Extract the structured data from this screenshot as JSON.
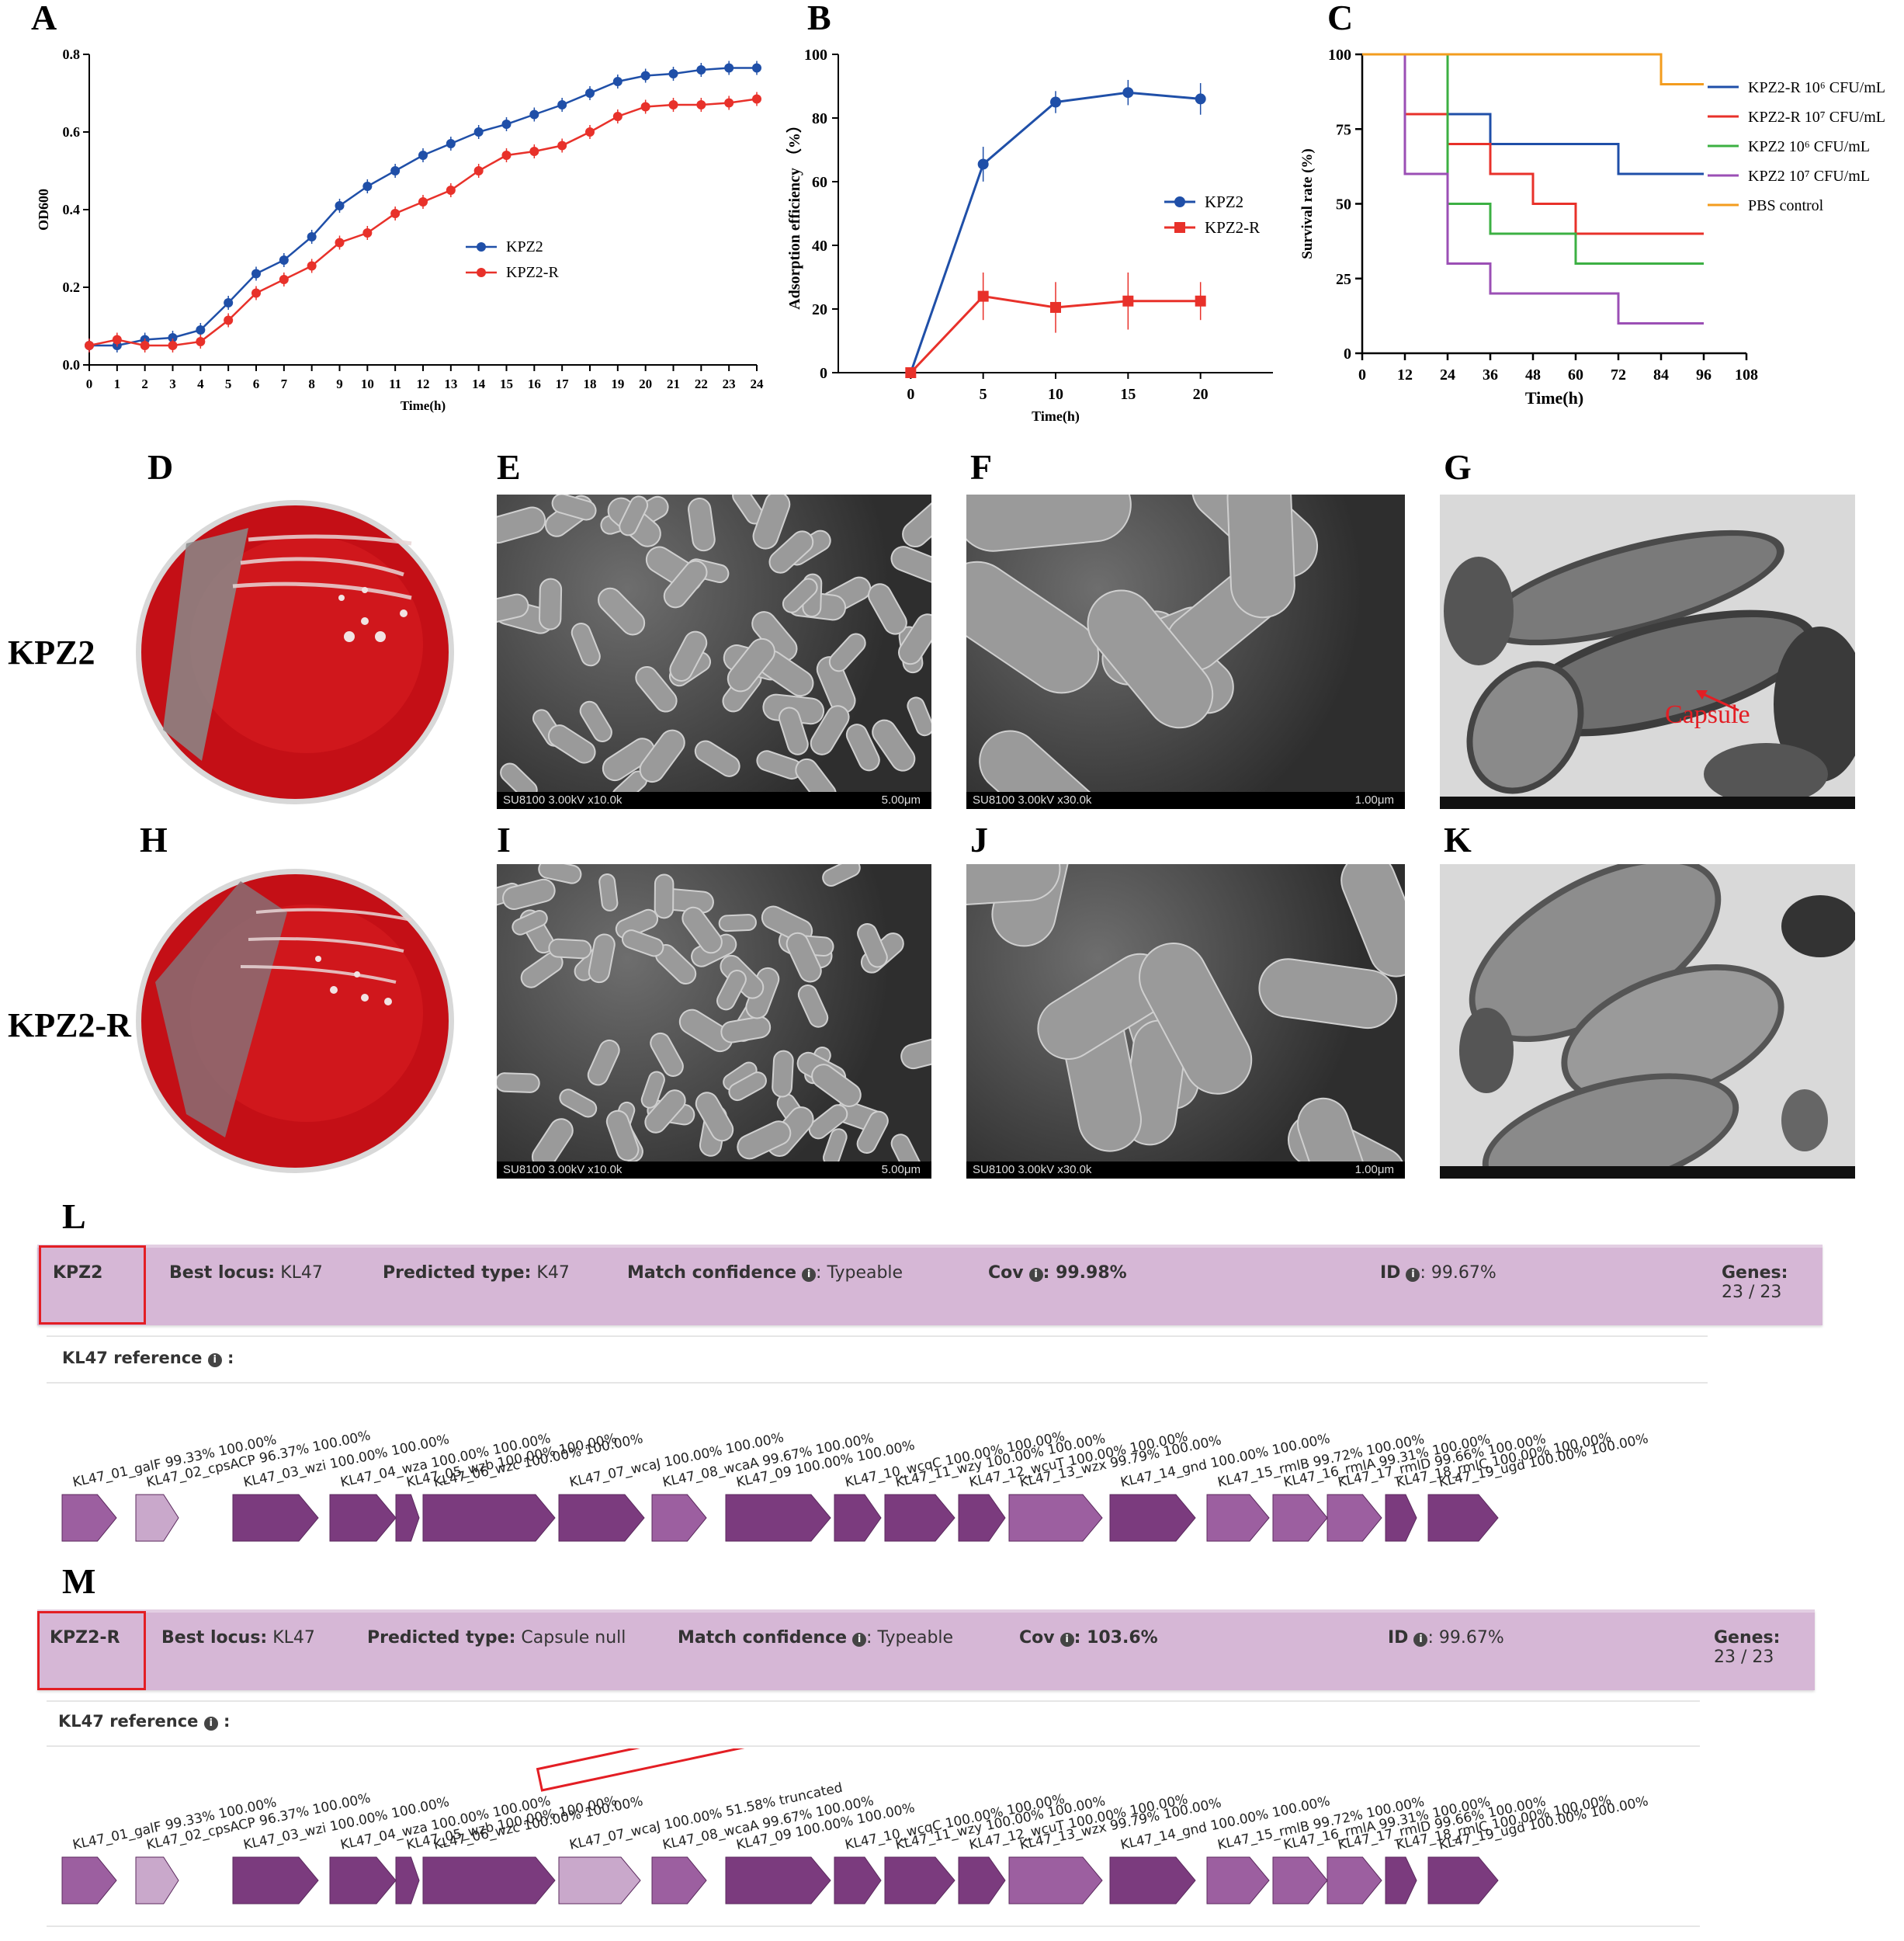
{
  "panels": {
    "A": "A",
    "B": "B",
    "C": "C",
    "D": "D",
    "E": "E",
    "F": "F",
    "G": "G",
    "H": "H",
    "I": "I",
    "J": "J",
    "K": "K",
    "L": "L",
    "M": "M"
  },
  "row_labels": {
    "top": "KPZ2",
    "bottom": "KPZ2-R"
  },
  "chart_data": [
    {
      "panel": "A",
      "type": "line",
      "xlabel": "Time(h)",
      "ylabel": "OD600",
      "xlim": [
        0,
        24
      ],
      "ylim": [
        0,
        0.8
      ],
      "x": [
        0,
        1,
        2,
        3,
        4,
        5,
        6,
        7,
        8,
        9,
        10,
        11,
        12,
        13,
        14,
        15,
        16,
        17,
        18,
        19,
        20,
        21,
        22,
        23,
        24
      ],
      "yticks": [
        "0.0",
        "0.2",
        "0.4",
        "0.6",
        "0.8"
      ],
      "series": [
        {
          "name": "KPZ2",
          "color": "#1f4fa8",
          "values": [
            0.05,
            0.05,
            0.065,
            0.07,
            0.09,
            0.16,
            0.235,
            0.27,
            0.33,
            0.41,
            0.46,
            0.5,
            0.54,
            0.57,
            0.6,
            0.62,
            0.645,
            0.67,
            0.7,
            0.73,
            0.745,
            0.75,
            0.76,
            0.765,
            0.765
          ]
        },
        {
          "name": "KPZ2-R",
          "color": "#e8312a",
          "values": [
            0.05,
            0.065,
            0.05,
            0.05,
            0.06,
            0.115,
            0.185,
            0.22,
            0.255,
            0.315,
            0.34,
            0.39,
            0.42,
            0.45,
            0.5,
            0.54,
            0.55,
            0.565,
            0.6,
            0.64,
            0.665,
            0.67,
            0.67,
            0.675,
            0.685
          ]
        }
      ]
    },
    {
      "panel": "B",
      "type": "line",
      "xlabel": "Time(h)",
      "ylabel": "Adsorption efficiency （%）",
      "xlim": [
        -5,
        25
      ],
      "ylim": [
        0,
        100
      ],
      "x": [
        0,
        5,
        10,
        15,
        20
      ],
      "yticks": [
        "0",
        "20",
        "40",
        "60",
        "80",
        "100"
      ],
      "series": [
        {
          "name": "KPZ2",
          "color": "#1f4fa8",
          "values": [
            0,
            65.5,
            85,
            88,
            86
          ]
        },
        {
          "name": "KPZ2-R",
          "color": "#e8312a",
          "values": [
            0,
            24,
            20.5,
            22.5,
            22.5
          ]
        }
      ]
    },
    {
      "panel": "C",
      "type": "line",
      "step": true,
      "xlabel": "Time(h)",
      "ylabel": "Survival rate (%)",
      "xlim": [
        0,
        108
      ],
      "ylim": [
        0,
        100
      ],
      "xticks": [
        "0",
        "12",
        "24",
        "36",
        "48",
        "60",
        "72",
        "84",
        "96",
        "108"
      ],
      "yticks": [
        "0",
        "25",
        "50",
        "75",
        "100"
      ],
      "series": [
        {
          "name": "KPZ2-R 10⁶ CFU/mL",
          "color": "#1f4fa8",
          "steps": [
            [
              0,
              100
            ],
            [
              24,
              80
            ],
            [
              36,
              70
            ],
            [
              72,
              60
            ],
            [
              96,
              60
            ]
          ]
        },
        {
          "name": "KPZ2-R 10⁷ CFU/mL",
          "color": "#e8312a",
          "steps": [
            [
              0,
              100
            ],
            [
              12,
              80
            ],
            [
              24,
              70
            ],
            [
              36,
              60
            ],
            [
              48,
              50
            ],
            [
              60,
              40
            ],
            [
              96,
              40
            ]
          ]
        },
        {
          "name": "KPZ2 10⁶ CFU/mL",
          "color": "#3cb043",
          "steps": [
            [
              0,
              100
            ],
            [
              24,
              50
            ],
            [
              36,
              40
            ],
            [
              60,
              30
            ],
            [
              96,
              30
            ]
          ]
        },
        {
          "name": "KPZ2 10⁷ CFU/mL",
          "color": "#9b4fb5",
          "steps": [
            [
              0,
              100
            ],
            [
              12,
              60
            ],
            [
              24,
              30
            ],
            [
              36,
              20
            ],
            [
              72,
              10
            ],
            [
              96,
              10
            ]
          ]
        },
        {
          "name": "PBS control",
          "color": "#f39c1e",
          "steps": [
            [
              0,
              100
            ],
            [
              84,
              90
            ],
            [
              96,
              90
            ]
          ]
        }
      ]
    }
  ],
  "images": {
    "E_caption": "SU8100 3.00kV x10.0k",
    "E_scale": "5.00μm",
    "F_caption": "SU8100 3.00kV x30.0k",
    "F_scale": "1.00μm",
    "I_caption": "SU8100 3.00kV x10.0k",
    "I_scale": "5.00μm",
    "J_caption": "SU8100 3.00kV x30.0k",
    "J_scale": "1.00μm",
    "G_annotation": "Capsule"
  },
  "kaptive": [
    {
      "strain": "KPZ2",
      "best_locus_label": "Best locus:",
      "best_locus": "KL47",
      "predicted_type_label": "Predicted type:",
      "predicted_type": "K47",
      "match_confidence_label": "Match confidence",
      "match_confidence": ": Typeable",
      "cov_label": "Cov",
      "cov": ": 99.98%",
      "id_label": "ID",
      "id": ": 99.67%",
      "genes_label": "Genes:",
      "genes": "23 / 23",
      "reference_label": "KL47 reference",
      "genes_list": [
        "KL47_01_galF 99.33% 100.00%",
        "KL47_02_cpsACP 96.37% 100.00%",
        "KL47_03_wzi 100.00% 100.00%",
        "KL47_04_wza 100.00% 100.00%",
        "KL47_05_wzb 100.00% 100.00%",
        "KL47_06_wzc 100.00% 100.00%",
        "KL47_07_wcaJ 100.00% 100.00%",
        "KL47_08_wcaA 99.67% 100.00%",
        "KL47_09 100.00% 100.00%",
        "KL47_10_wcqC 100.00% 100.00%",
        "KL47_11_wzy 100.00% 100.00%",
        "KL47_12_wcuT 100.00% 100.00%",
        "KL47_13_wzx 99.79% 100.00%",
        "KL47_14_gnd 100.00% 100.00%",
        "KL47_15_rmlB 99.72% 100.00%",
        "KL47_16_rmlA 99.31% 100.00%",
        "KL47_17_rmlD 99.66% 100.00%",
        "KL47_18_rmlC 100.00% 100.00%",
        "KL47_19_ugd 100.00% 100.00%"
      ]
    },
    {
      "strain": "KPZ2-R",
      "best_locus_label": "Best locus:",
      "best_locus": "KL47",
      "predicted_type_label": "Predicted type:",
      "predicted_type": "Capsule null",
      "match_confidence_label": "Match confidence",
      "match_confidence": ": Typeable",
      "cov_label": "Cov",
      "cov": ": 103.6%",
      "id_label": "ID",
      "id": ": 99.67%",
      "genes_label": "Genes:",
      "genes": "23 / 23",
      "reference_label": "KL47 reference",
      "genes_list": [
        "KL47_01_galF 99.33% 100.00%",
        "KL47_02_cpsACP 96.37% 100.00%",
        "KL47_03_wzi 100.00% 100.00%",
        "KL47_04_wza 100.00% 100.00%",
        "KL47_05_wzb 100.00% 100.00%",
        "KL47_06_wzc 100.00% 100.00%",
        "KL47_07_wcaJ 100.00% 51.58% truncated",
        "KL47_08_wcaA 99.67% 100.00%",
        "KL47_09 100.00% 100.00%",
        "KL47_10_wcqC 100.00% 100.00%",
        "KL47_11_wzy 100.00% 100.00%",
        "KL47_12_wcuT 100.00% 100.00%",
        "KL47_13_wzx 99.79% 100.00%",
        "KL47_14_gnd 100.00% 100.00%",
        "KL47_15_rmlB 99.72% 100.00%",
        "KL47_16_rmlA 99.31% 100.00%",
        "KL47_17_rmlD 99.66% 100.00%",
        "KL47_18_rmlC 100.00% 100.00%",
        "KL47_19_ugd 100.00% 100.00%"
      ]
    }
  ],
  "colors": {
    "blue": "#1f4fa8",
    "red": "#e8312a",
    "green": "#3cb043",
    "purple": "#9b4fb5",
    "orange": "#f39c1e",
    "kaptive_box": "#d6b7d6",
    "gene_dark": "#7b3b7e",
    "gene_mid": "#9c5fa0",
    "gene_light": "#c9a8cb",
    "highlight": "#e31e24"
  }
}
